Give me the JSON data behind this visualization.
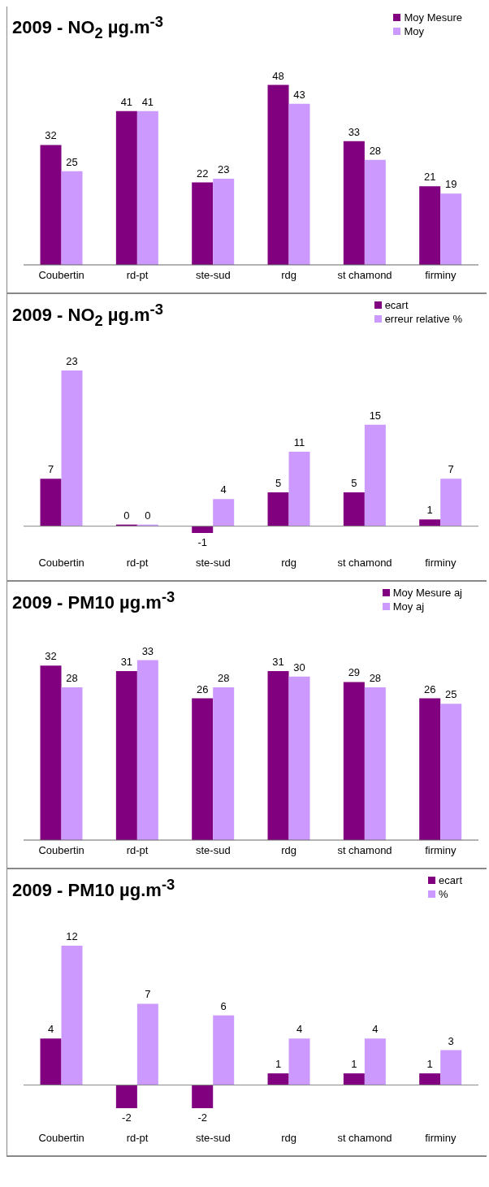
{
  "chart_data": [
    {
      "type": "bar",
      "title": "2009 - NO$_{2}$ µg.m$^{-3}$",
      "categories": [
        "Coubertin",
        "rd-pt",
        "ste-sud",
        "rdg",
        "st chamond",
        "firminy"
      ],
      "series": [
        {
          "name": "Moy Mesure",
          "color": "#800080",
          "values": [
            32,
            41,
            22,
            48,
            33,
            21
          ]
        },
        {
          "name": "Moy",
          "color": "#cc99ff",
          "values": [
            25,
            41,
            23,
            43,
            28,
            19
          ]
        }
      ],
      "data_labels": true,
      "legend": "top right",
      "grid": false
    },
    {
      "type": "bar",
      "title": "2009 - NO$_{2}$ µg.m$^{-3}$",
      "categories": [
        "Coubertin",
        "rd-pt",
        "ste-sud",
        "rdg",
        "st chamond",
        "firminy"
      ],
      "series": [
        {
          "name": "ecart",
          "color": "#800080",
          "values": [
            7,
            0,
            -1,
            5,
            5,
            1
          ]
        },
        {
          "name": "erreur relative %",
          "color": "#cc99ff",
          "values": [
            23,
            0,
            4,
            11,
            15,
            7
          ]
        }
      ],
      "data_labels": true,
      "legend": "top right",
      "grid": false
    },
    {
      "type": "bar",
      "title": "2009 - PM10 µg.m$^{-3}$",
      "categories": [
        "Coubertin",
        "rd-pt",
        "ste-sud",
        "rdg",
        "st chamond",
        "firminy"
      ],
      "series": [
        {
          "name": "Moy Mesure aj",
          "color": "#800080",
          "values": [
            32,
            31,
            26,
            31,
            29,
            26
          ]
        },
        {
          "name": "Moy aj",
          "color": "#cc99ff",
          "values": [
            28,
            33,
            28,
            30,
            28,
            25
          ]
        }
      ],
      "data_labels": true,
      "legend": "top right",
      "grid": false
    },
    {
      "type": "bar",
      "title": "2009 - PM10 µg.m$^{-3}$",
      "categories": [
        "Coubertin",
        "rd-pt",
        "ste-sud",
        "rdg",
        "st chamond",
        "firminy"
      ],
      "series": [
        {
          "name": "ecart",
          "color": "#800080",
          "values": [
            4,
            -2,
            -2,
            1,
            1,
            1
          ]
        },
        {
          "name": "%",
          "color": "#cc99ff",
          "values": [
            12,
            7,
            6,
            4,
            4,
            3
          ]
        }
      ],
      "data_labels": true,
      "legend": "top right",
      "grid": false
    }
  ]
}
